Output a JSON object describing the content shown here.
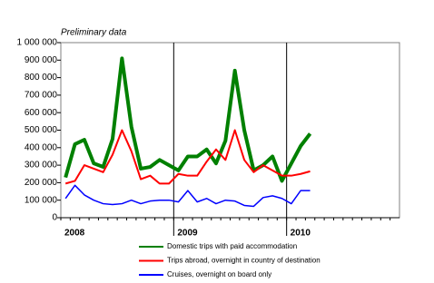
{
  "chart_data": {
    "type": "line",
    "subtitle": "Preliminary data",
    "categories": [
      "2008",
      null,
      null,
      null,
      null,
      null,
      null,
      null,
      null,
      null,
      null,
      null,
      "2009",
      null,
      null,
      null,
      null,
      null,
      null,
      null,
      null,
      null,
      null,
      null,
      "2010",
      null,
      null,
      null,
      null,
      null,
      null,
      null,
      null,
      null,
      null,
      null
    ],
    "series": [
      {
        "name": "Domestic trips with paid accommodation",
        "color": "#008000",
        "values": [
          230000,
          420000,
          445000,
          310000,
          290000,
          450000,
          910000,
          520000,
          280000,
          290000,
          330000,
          300000,
          270000,
          350000,
          350000,
          390000,
          310000,
          440000,
          840000,
          500000,
          270000,
          300000,
          350000,
          210000,
          310000,
          410000,
          480000,
          null,
          null,
          null,
          null,
          null,
          null,
          null,
          null,
          null
        ]
      },
      {
        "name": "Trips abroad, overnight in country of destination",
        "color": "#ff0000",
        "values": [
          195000,
          210000,
          300000,
          280000,
          260000,
          360000,
          500000,
          380000,
          220000,
          240000,
          195000,
          195000,
          250000,
          240000,
          240000,
          320000,
          390000,
          330000,
          500000,
          330000,
          260000,
          300000,
          270000,
          240000,
          240000,
          250000,
          265000,
          null,
          null,
          null,
          null,
          null,
          null,
          null,
          null,
          null
        ]
      },
      {
        "name": "Cruises, overnight on board only",
        "color": "#0000ff",
        "values": [
          110000,
          185000,
          130000,
          100000,
          80000,
          75000,
          80000,
          100000,
          80000,
          95000,
          100000,
          100000,
          90000,
          155000,
          90000,
          110000,
          80000,
          100000,
          95000,
          70000,
          65000,
          115000,
          125000,
          110000,
          80000,
          155000,
          155000,
          null,
          null,
          null,
          null,
          null,
          null,
          null,
          null,
          null
        ]
      }
    ],
    "ylim": [
      0,
      1000000
    ],
    "yticks": [
      0,
      {
        "value": 100000,
        "label": "100 000"
      },
      {
        "value": 200000,
        "label": "200 000"
      },
      {
        "value": 300000,
        "label": "300 000"
      },
      {
        "value": 400000,
        "label": "400 000"
      },
      {
        "value": 500000,
        "label": "500 000"
      },
      {
        "value": 600000,
        "label": "600 000"
      },
      {
        "value": 700000,
        "label": "700 000"
      },
      {
        "value": 800000,
        "label": "800 000"
      },
      {
        "value": 900000,
        "label": "900 000"
      },
      {
        "value": 1000000,
        "label": "1 000 000"
      }
    ],
    "grid": false
  }
}
